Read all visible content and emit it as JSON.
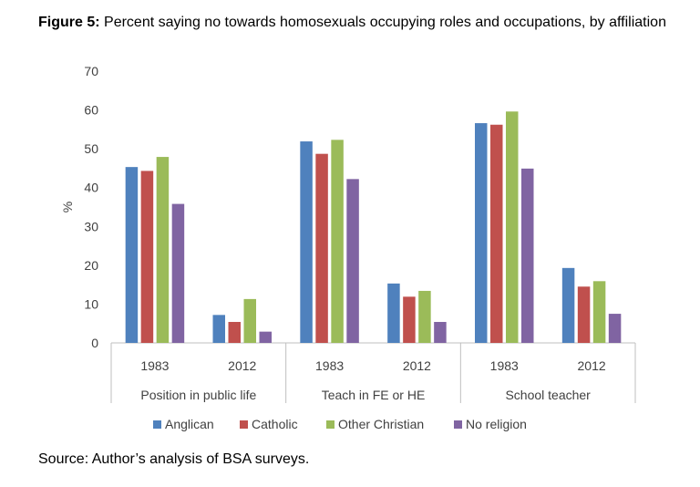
{
  "title": {
    "figure_label": "Figure 5:",
    "text": "Percent saying no towards homosexuals occupying roles and occupations, by affiliation"
  },
  "source": "Source: Author’s analysis of BSA surveys.",
  "chart_data": {
    "type": "bar",
    "ylabel": "%",
    "xlabel": "",
    "ylim": [
      0,
      70
    ],
    "yticks": [
      0,
      10,
      20,
      30,
      40,
      50,
      60,
      70
    ],
    "grid": false,
    "legend_position": "bottom",
    "groups": [
      {
        "label": "Position in public life",
        "categories": [
          "1983",
          "2012"
        ]
      },
      {
        "label": "Teach in FE or HE",
        "categories": [
          "1983",
          "2012"
        ]
      },
      {
        "label": "School teacher",
        "categories": [
          "1983",
          "2012"
        ]
      }
    ],
    "categories": [
      "Position in public life 1983",
      "Position in public life 2012",
      "Teach in FE or HE 1983",
      "Teach in FE or HE 2012",
      "School teacher 1983",
      "School teacher 2012"
    ],
    "series": [
      {
        "name": "Anglican",
        "color": "#4F81BD",
        "values": [
          45.3,
          7.2,
          51.9,
          15.3,
          56.6,
          19.3
        ]
      },
      {
        "name": "Catholic",
        "color": "#C0504D",
        "values": [
          44.3,
          5.4,
          48.7,
          11.9,
          56.2,
          14.5
        ]
      },
      {
        "name": "Other Christian",
        "color": "#9BBB59",
        "values": [
          47.9,
          11.3,
          52.3,
          13.4,
          59.6,
          15.9
        ]
      },
      {
        "name": "No religion",
        "color": "#8064A2",
        "values": [
          35.8,
          2.9,
          42.2,
          5.4,
          44.9,
          7.5
        ]
      }
    ]
  }
}
